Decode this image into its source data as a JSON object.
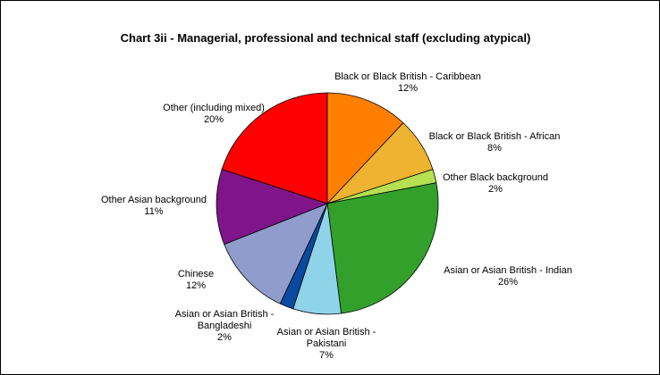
{
  "chart_data": {
    "type": "pie",
    "title": "Chart 3ii - Managerial, professional and technical staff (excluding atypical)",
    "start_angle_deg": 0,
    "direction": "clockwise",
    "slices": [
      {
        "label": [
          "Black or Black British - Caribbean"
        ],
        "value": 12,
        "display": "12%",
        "color": "#ff8000"
      },
      {
        "label": [
          "Black or Black British - African"
        ],
        "value": 8,
        "display": "8%",
        "color": "#edb331"
      },
      {
        "label": [
          "Other Black background"
        ],
        "value": 2,
        "display": "2%",
        "color": "#b5e051"
      },
      {
        "label": [
          "Asian or Asian British - Indian"
        ],
        "value": 26,
        "display": "26%",
        "color": "#33a02c"
      },
      {
        "label": [
          "Asian or Asian British -",
          "Pakistani"
        ],
        "value": 7,
        "display": "7%",
        "color": "#8fd3e8"
      },
      {
        "label": [
          "Asian or Asian British -",
          "Bangladeshi"
        ],
        "value": 2,
        "display": "2%",
        "color": "#0a4aa0"
      },
      {
        "label": [
          "Chinese"
        ],
        "value": 12,
        "display": "12%",
        "color": "#8f9ccc"
      },
      {
        "label": [
          "Other Asian background"
        ],
        "value": 11,
        "display": "11%",
        "color": "#80158a"
      },
      {
        "label": [
          "Other (including mixed)"
        ],
        "value": 20,
        "display": "20%",
        "color": "#ff0000"
      }
    ]
  }
}
